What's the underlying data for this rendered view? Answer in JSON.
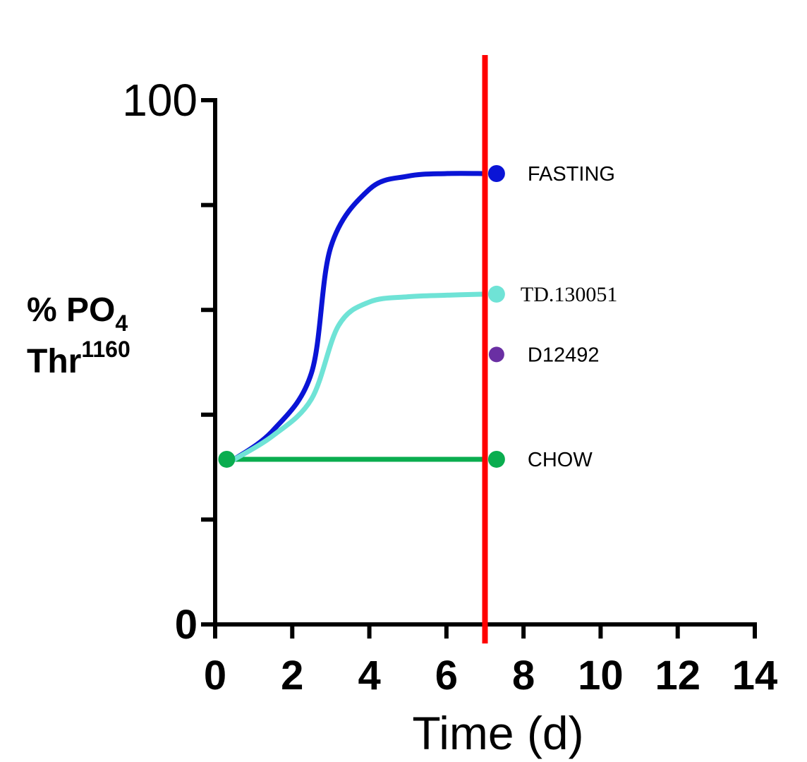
{
  "chart_data": {
    "type": "line",
    "xlabel": "Time (d)",
    "ylabel": {
      "line1_prefix": "% PO",
      "line1_subscript": "4",
      "line2_prefix": "Thr",
      "line2_superscript": "1160"
    },
    "xlim": [
      0,
      14
    ],
    "ylim": [
      0,
      100
    ],
    "x_ticks": [
      0,
      2,
      4,
      6,
      8,
      10,
      12,
      14
    ],
    "x_tick_labels": [
      "0",
      "2",
      "4",
      "6",
      "8",
      "10",
      "12",
      "14"
    ],
    "y_ticks": [
      0,
      20,
      40,
      60,
      80,
      100
    ],
    "y_tick_labels": [
      "0",
      "",
      "",
      "",
      "",
      "100"
    ],
    "vertical_marker_x": 7,
    "vertical_marker_color": "#ff0000",
    "grid": false,
    "series": [
      {
        "name": "FASTING",
        "color": "#0a14d6",
        "x": [
          0.5,
          1.5,
          2.5,
          3.0,
          4.0,
          5.0,
          6.0,
          7.0
        ],
        "y": [
          31.5,
          37,
          48,
          72,
          83,
          85.5,
          86,
          86
        ],
        "endpoint": {
          "x": 7.3,
          "y": 86
        }
      },
      {
        "name": "TD.130051",
        "color": "#6fe3d6",
        "x": [
          0.5,
          1.5,
          2.5,
          3.2,
          4.0,
          5.0,
          6.0,
          7.0
        ],
        "y": [
          31.5,
          36,
          43,
          57,
          61.5,
          62.5,
          62.8,
          63
        ],
        "endpoint": {
          "x": 7.3,
          "y": 63
        }
      },
      {
        "name": "D12492",
        "color": "#6a2fa3",
        "x": [],
        "y": [],
        "endpoint": {
          "x": 7.3,
          "y": 51.5
        }
      },
      {
        "name": "CHOW",
        "color": "#0aad4f",
        "x": [
          0.3,
          7.0
        ],
        "y": [
          31.5,
          31.5
        ],
        "startpoint": {
          "x": 0.3,
          "y": 31.5
        },
        "endpoint": {
          "x": 7.3,
          "y": 31.5
        }
      }
    ]
  }
}
